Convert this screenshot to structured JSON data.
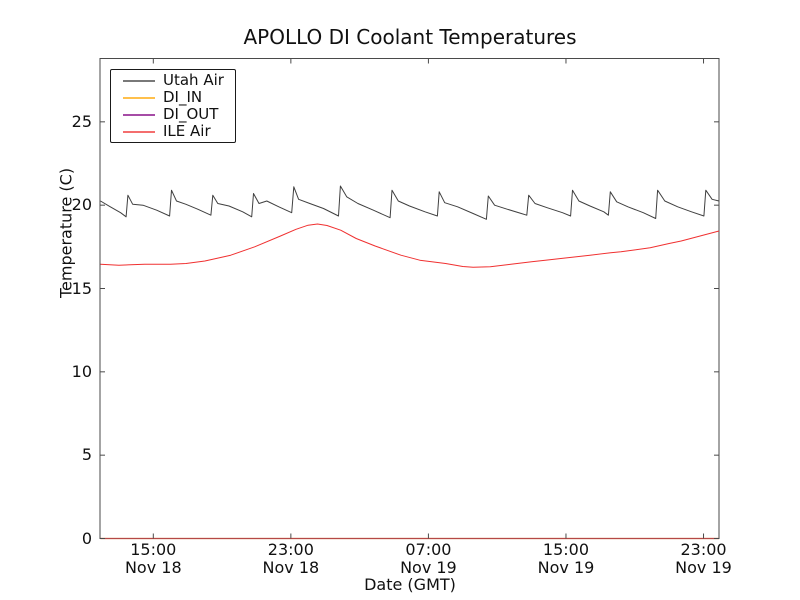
{
  "chart_data": {
    "type": "line",
    "title": "APOLLO DI Coolant Temperatures",
    "xlabel": "Date (GMT)",
    "ylabel": "Temperature (C)",
    "grid": false,
    "x_axis": {
      "unit": "hours since Nov 18 00:00 GMT",
      "range": [
        11.9,
        47.9
      ],
      "ticks": [
        {
          "value": 15,
          "time": "15:00",
          "date": "Nov 18"
        },
        {
          "value": 23,
          "time": "23:00",
          "date": "Nov 18"
        },
        {
          "value": 31,
          "time": "07:00",
          "date": "Nov 19"
        },
        {
          "value": 39,
          "time": "15:00",
          "date": "Nov 19"
        },
        {
          "value": 47,
          "time": "23:00",
          "date": "Nov 19"
        }
      ]
    },
    "y_axis": {
      "range": [
        0,
        28.8
      ],
      "ticks": [
        0,
        5,
        10,
        15,
        20,
        25
      ]
    },
    "legend": {
      "position": "upper left",
      "entries": [
        {
          "label": "Utah Air",
          "color": "#404040"
        },
        {
          "label": "DI_IN",
          "color": "#ffa500"
        },
        {
          "label": "DI_OUT",
          "color": "#800080"
        },
        {
          "label": "ILE Air",
          "color": "#f03030"
        }
      ]
    },
    "series": [
      {
        "name": "Utah Air",
        "color": "#404040",
        "width": 1,
        "points": [
          [
            11.93,
            20.25
          ],
          [
            12.5,
            19.9
          ],
          [
            13.1,
            19.55
          ],
          [
            13.42,
            19.3
          ],
          [
            13.52,
            20.6
          ],
          [
            13.8,
            20.05
          ],
          [
            14.4,
            20.0
          ],
          [
            15.2,
            19.7
          ],
          [
            15.95,
            19.35
          ],
          [
            16.06,
            20.9
          ],
          [
            16.35,
            20.25
          ],
          [
            16.9,
            20.05
          ],
          [
            17.6,
            19.75
          ],
          [
            18.35,
            19.4
          ],
          [
            18.46,
            20.6
          ],
          [
            18.75,
            20.1
          ],
          [
            19.4,
            19.95
          ],
          [
            20.2,
            19.6
          ],
          [
            20.72,
            19.3
          ],
          [
            20.83,
            20.7
          ],
          [
            21.15,
            20.1
          ],
          [
            21.6,
            20.25
          ],
          [
            22.3,
            19.9
          ],
          [
            23.05,
            19.55
          ],
          [
            23.17,
            21.1
          ],
          [
            23.45,
            20.35
          ],
          [
            24.1,
            20.1
          ],
          [
            24.9,
            19.8
          ],
          [
            25.77,
            19.35
          ],
          [
            25.88,
            21.15
          ],
          [
            26.25,
            20.5
          ],
          [
            26.9,
            20.1
          ],
          [
            27.8,
            19.7
          ],
          [
            28.77,
            19.25
          ],
          [
            28.88,
            20.9
          ],
          [
            29.25,
            20.25
          ],
          [
            29.9,
            19.95
          ],
          [
            30.8,
            19.6
          ],
          [
            31.52,
            19.35
          ],
          [
            31.63,
            20.8
          ],
          [
            31.95,
            20.15
          ],
          [
            32.7,
            19.9
          ],
          [
            33.6,
            19.5
          ],
          [
            34.37,
            19.15
          ],
          [
            34.48,
            20.55
          ],
          [
            34.85,
            20.0
          ],
          [
            35.6,
            19.75
          ],
          [
            36.4,
            19.5
          ],
          [
            36.72,
            19.4
          ],
          [
            36.83,
            20.6
          ],
          [
            37.2,
            20.1
          ],
          [
            37.9,
            19.85
          ],
          [
            38.8,
            19.55
          ],
          [
            39.27,
            19.35
          ],
          [
            39.38,
            20.9
          ],
          [
            39.75,
            20.25
          ],
          [
            40.4,
            19.95
          ],
          [
            41.2,
            19.6
          ],
          [
            41.47,
            19.4
          ],
          [
            41.58,
            20.8
          ],
          [
            41.95,
            20.2
          ],
          [
            42.6,
            19.9
          ],
          [
            43.5,
            19.55
          ],
          [
            44.22,
            19.2
          ],
          [
            44.33,
            20.9
          ],
          [
            44.75,
            20.25
          ],
          [
            45.5,
            19.9
          ],
          [
            46.3,
            19.6
          ],
          [
            47.02,
            19.35
          ],
          [
            47.13,
            20.9
          ],
          [
            47.5,
            20.35
          ],
          [
            47.9,
            20.25
          ]
        ]
      },
      {
        "name": "DI_IN",
        "color": "#ffa500",
        "width": 1.2,
        "opacity": 0.95,
        "points": [
          [
            11.93,
            0
          ],
          [
            47.9,
            0
          ]
        ]
      },
      {
        "name": "DI_OUT",
        "color": "#800080",
        "width": 1.2,
        "opacity": 0.55,
        "points": [
          [
            11.93,
            0
          ],
          [
            47.9,
            0
          ]
        ]
      },
      {
        "name": "ILE Air",
        "color": "#f03030",
        "width": 1,
        "points": [
          [
            11.93,
            16.45
          ],
          [
            13.0,
            16.4
          ],
          [
            14.5,
            16.45
          ],
          [
            16.0,
            16.45
          ],
          [
            16.9,
            16.5
          ],
          [
            18.0,
            16.65
          ],
          [
            19.5,
            17.0
          ],
          [
            20.9,
            17.5
          ],
          [
            22.4,
            18.15
          ],
          [
            23.3,
            18.55
          ],
          [
            24.0,
            18.8
          ],
          [
            24.55,
            18.87
          ],
          [
            25.1,
            18.78
          ],
          [
            25.9,
            18.5
          ],
          [
            26.8,
            18.0
          ],
          [
            27.9,
            17.55
          ],
          [
            29.4,
            17.0
          ],
          [
            30.5,
            16.7
          ],
          [
            32.0,
            16.5
          ],
          [
            33.0,
            16.32
          ],
          [
            33.6,
            16.27
          ],
          [
            34.6,
            16.3
          ],
          [
            35.8,
            16.45
          ],
          [
            37.0,
            16.6
          ],
          [
            37.8,
            16.7
          ],
          [
            38.7,
            16.8
          ],
          [
            40.4,
            17.0
          ],
          [
            41.6,
            17.15
          ],
          [
            42.2,
            17.2
          ],
          [
            43.9,
            17.45
          ],
          [
            45.0,
            17.7
          ],
          [
            45.7,
            17.85
          ],
          [
            46.8,
            18.15
          ],
          [
            47.9,
            18.45
          ]
        ]
      }
    ]
  }
}
